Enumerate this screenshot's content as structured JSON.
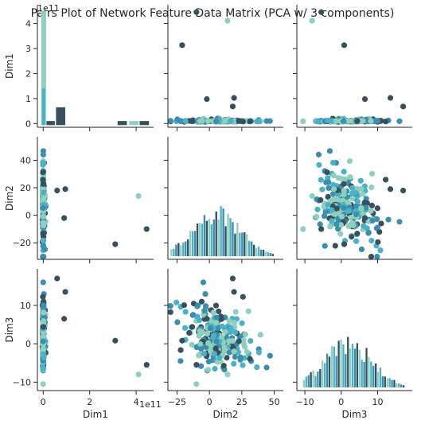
{
  "chart_data": {
    "type": "scatter",
    "title": "Pairs Plot of Network Feature Data Matrix (PCA w/ 3 components)",
    "variables": [
      "Dim1",
      "Dim2",
      "Dim3"
    ],
    "axis_labels": {
      "Dim1": "Dim1",
      "Dim2": "Dim2",
      "Dim3": "Dim3"
    },
    "offset_text": "1e11",
    "limits": {
      "Dim1": [
        -0.25,
        4.75
      ],
      "Dim2": [
        -32,
        57
      ],
      "Dim3": [
        -12.2,
        19.5
      ]
    },
    "ticks": {
      "Dim1": {
        "values": [
          0,
          2,
          4
        ],
        "labels": [
          "0",
          "2",
          "4"
        ]
      },
      "Dim1_hist": {
        "values": [
          0,
          1,
          2,
          3,
          4
        ],
        "labels": [
          "0",
          "1",
          "2",
          "3",
          "4"
        ]
      },
      "Dim2": {
        "values": [
          -20,
          0,
          20,
          40
        ],
        "labels": [
          "−20",
          "0",
          "20",
          "40"
        ]
      },
      "Dim2_x": {
        "values": [
          -25,
          0,
          25,
          50
        ],
        "labels": [
          "−25",
          "0",
          "25",
          "50"
        ]
      },
      "Dim3": {
        "values": [
          -10,
          0,
          10
        ],
        "labels": [
          "−10",
          "0",
          "10"
        ]
      }
    },
    "series_colors": [
      "#8fd0bd",
      "#4cb0c6",
      "#3a8eb0",
      "#37505c"
    ],
    "grid": false,
    "legend": "none",
    "diag_hist": {
      "Dim1": [
        {
          "x0": -0.08,
          "x1": 0.12,
          "h": 4.5,
          "c": 0
        },
        {
          "x0": -0.06,
          "x1": 0.09,
          "h": 1.4,
          "c": 1
        },
        {
          "x0": 0.14,
          "x1": 0.5,
          "h": 0.1,
          "c": 3
        },
        {
          "x0": 0.55,
          "x1": 0.95,
          "h": 0.65,
          "c": 3
        },
        {
          "x0": 3.2,
          "x1": 3.6,
          "h": 0.1,
          "c": 3
        },
        {
          "x0": 3.7,
          "x1": 4.1,
          "h": 0.1,
          "c": 0
        },
        {
          "x0": 4.15,
          "x1": 4.55,
          "h": 0.1,
          "c": 3
        }
      ],
      "Dim2_range": [
        -30,
        50
      ],
      "Dim3_range": [
        -10.5,
        17.5
      ]
    },
    "outliers": {
      "Dim1": [
        4.45,
        3.1,
        4.1,
        0.6,
        0.95,
        0.9
      ],
      "Dim2": [
        -10,
        -21,
        14,
        18,
        19,
        -2
      ],
      "Dim3": [
        -5.5,
        0.8,
        -8.0,
        17.0,
        13.5,
        6.5
      ],
      "c": [
        3,
        3,
        0,
        3,
        3,
        3
      ]
    }
  }
}
